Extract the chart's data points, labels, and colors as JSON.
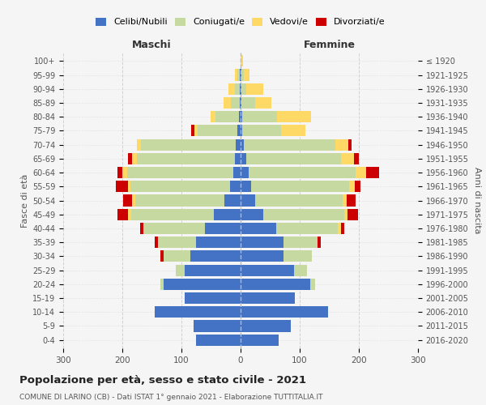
{
  "age_groups": [
    "0-4",
    "5-9",
    "10-14",
    "15-19",
    "20-24",
    "25-29",
    "30-34",
    "35-39",
    "40-44",
    "45-49",
    "50-54",
    "55-59",
    "60-64",
    "65-69",
    "70-74",
    "75-79",
    "80-84",
    "85-89",
    "90-94",
    "95-99",
    "100+"
  ],
  "birth_years": [
    "2016-2020",
    "2011-2015",
    "2006-2010",
    "2001-2005",
    "1996-2000",
    "1991-1995",
    "1986-1990",
    "1981-1985",
    "1976-1980",
    "1971-1975",
    "1966-1970",
    "1961-1965",
    "1956-1960",
    "1951-1955",
    "1946-1950",
    "1941-1945",
    "1936-1940",
    "1931-1935",
    "1926-1930",
    "1921-1925",
    "≤ 1920"
  ],
  "males": {
    "celibi": [
      75,
      80,
      145,
      95,
      130,
      95,
      85,
      75,
      60,
      45,
      28,
      18,
      12,
      10,
      8,
      5,
      3,
      2,
      1,
      2,
      0
    ],
    "coniugati": [
      0,
      0,
      0,
      0,
      5,
      15,
      45,
      65,
      105,
      140,
      150,
      168,
      180,
      165,
      160,
      68,
      40,
      15,
      8,
      4,
      0
    ],
    "vedovi": [
      0,
      0,
      0,
      0,
      0,
      0,
      0,
      0,
      0,
      5,
      5,
      5,
      8,
      8,
      8,
      5,
      8,
      12,
      12,
      4,
      0
    ],
    "divorziati": [
      0,
      0,
      0,
      0,
      0,
      0,
      5,
      5,
      5,
      18,
      15,
      20,
      8,
      8,
      0,
      5,
      0,
      0,
      0,
      0,
      0
    ]
  },
  "females": {
    "nubili": [
      65,
      85,
      148,
      92,
      118,
      90,
      72,
      72,
      60,
      38,
      24,
      18,
      14,
      10,
      5,
      3,
      3,
      2,
      2,
      1,
      0
    ],
    "coniugate": [
      0,
      0,
      0,
      0,
      8,
      22,
      48,
      58,
      105,
      138,
      148,
      165,
      180,
      160,
      155,
      65,
      58,
      22,
      8,
      4,
      0
    ],
    "vedove": [
      0,
      0,
      0,
      0,
      0,
      0,
      0,
      0,
      5,
      5,
      8,
      10,
      18,
      22,
      22,
      42,
      58,
      28,
      28,
      10,
      4
    ],
    "divorziate": [
      0,
      0,
      0,
      0,
      0,
      0,
      0,
      5,
      5,
      18,
      15,
      10,
      22,
      8,
      5,
      0,
      0,
      0,
      0,
      0,
      0
    ]
  },
  "colors": {
    "celibi": "#4472C4",
    "coniugati": "#c5d9a0",
    "vedovi": "#ffd966",
    "divorziati": "#cc0000"
  },
  "title": "Popolazione per età, sesso e stato civile - 2021",
  "subtitle": "COMUNE DI LARINO (CB) - Dati ISTAT 1° gennaio 2021 - Elaborazione TUTTITALIA.IT",
  "xlabel_left": "Maschi",
  "xlabel_right": "Femmine",
  "ylabel_left": "Fasce di età",
  "ylabel_right": "Anni di nascita",
  "xlim": 300,
  "background_color": "#f5f5f5",
  "legend_labels": [
    "Celibi/Nubili",
    "Coniugati/e",
    "Vedovi/e",
    "Divorziati/e"
  ]
}
